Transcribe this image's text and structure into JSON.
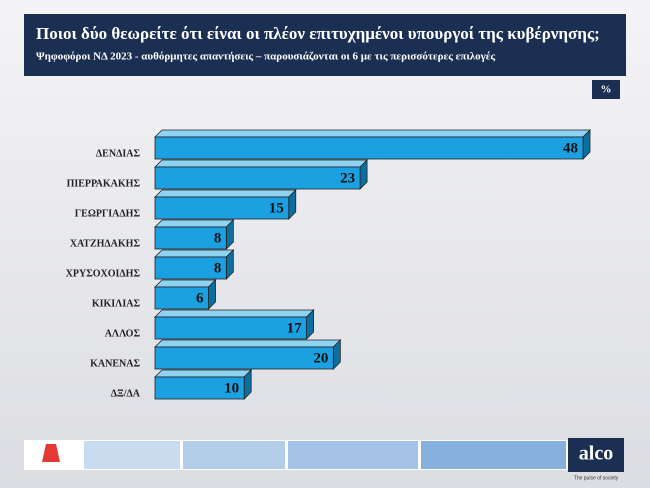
{
  "chart_data": {
    "type": "bar",
    "orientation": "horizontal",
    "title": "Ποιοι δύο θεωρείτε ότι είναι οι πλέον επιτυχημένοι υπουργοί της κυβέρνησης;",
    "subtitle": "Ψηφοφόροι ΝΔ 2023  - αυθόρμητες απαντήσεις – παρουσιάζονται οι 6 με τις περισσότερες επιλογές",
    "unit_label": "%",
    "categories": [
      "ΔΕΝΔΙΑΣ",
      "ΠΙΕΡΡΑΚΑΚΗΣ",
      "ΓΕΩΡΓΙΑΔΗΣ",
      "ΧΑΤΖΗΔΑΚΗΣ",
      "ΧΡΥΣΟΧΟΙΔΗΣ",
      "ΚΙΚΙΛΙΑΣ",
      "ΑΛΛΟΣ",
      "ΚΑΝΕΝΑΣ",
      "ΔΞ/ΔΑ"
    ],
    "values": [
      48,
      23,
      15,
      8,
      8,
      6,
      17,
      20,
      10
    ],
    "color": "#1ba1e2"
  },
  "footer": {
    "logo": "alco",
    "tagline": "The pulse of society"
  }
}
